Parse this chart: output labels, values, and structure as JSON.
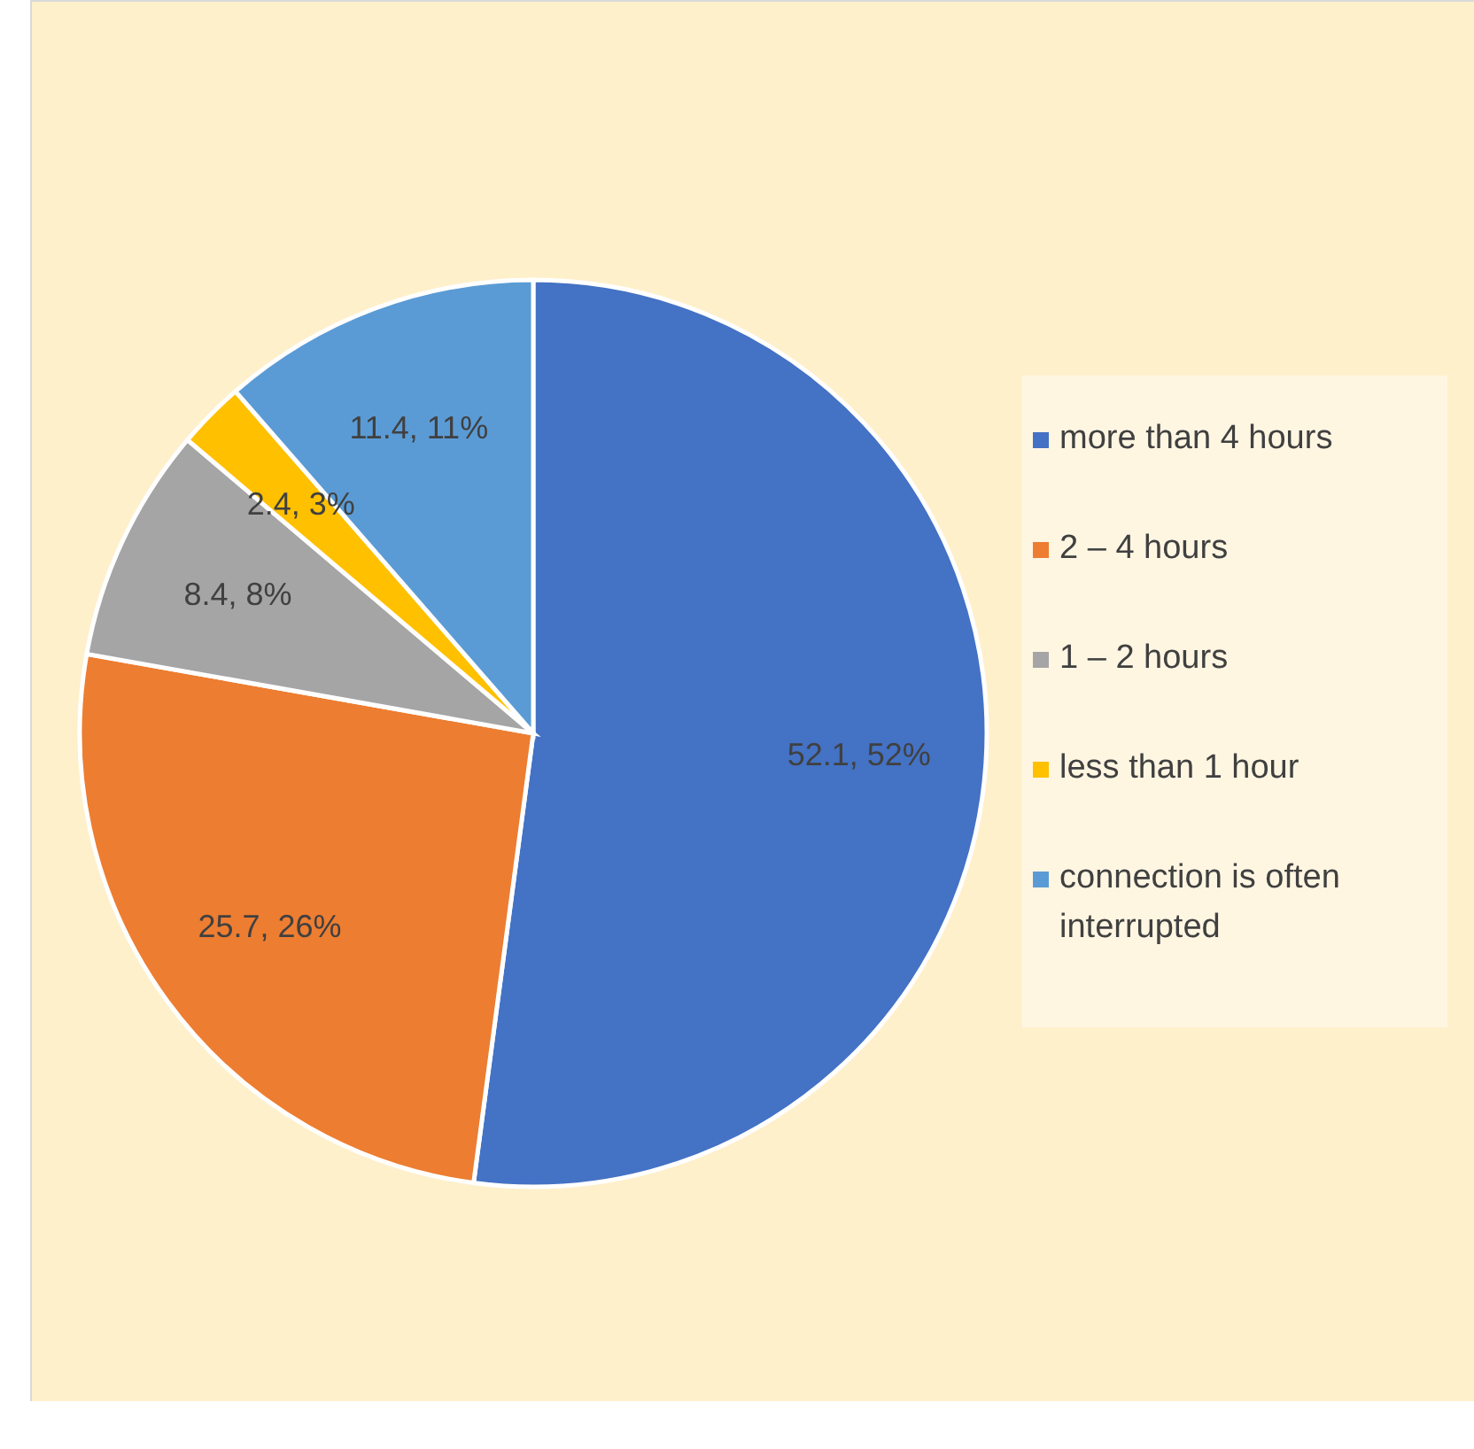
{
  "chart_data": {
    "type": "pie",
    "categories": [
      "more than 4 hours",
      "2 – 4 hours",
      "1 – 2 hours",
      "less than 1 hour",
      "connection is often interrupted"
    ],
    "values": [
      52.1,
      25.7,
      8.4,
      2.4,
      11.4
    ],
    "colors": [
      "#4472c4",
      "#ed7d31",
      "#a5a5a5",
      "#ffc000",
      "#5b9bd5"
    ],
    "value_labels": [
      "52.1, 52%",
      "25.7, 26%",
      "8.4, 8%",
      "2.4, 3%",
      "11.4, 11%"
    ],
    "legend": "right"
  }
}
